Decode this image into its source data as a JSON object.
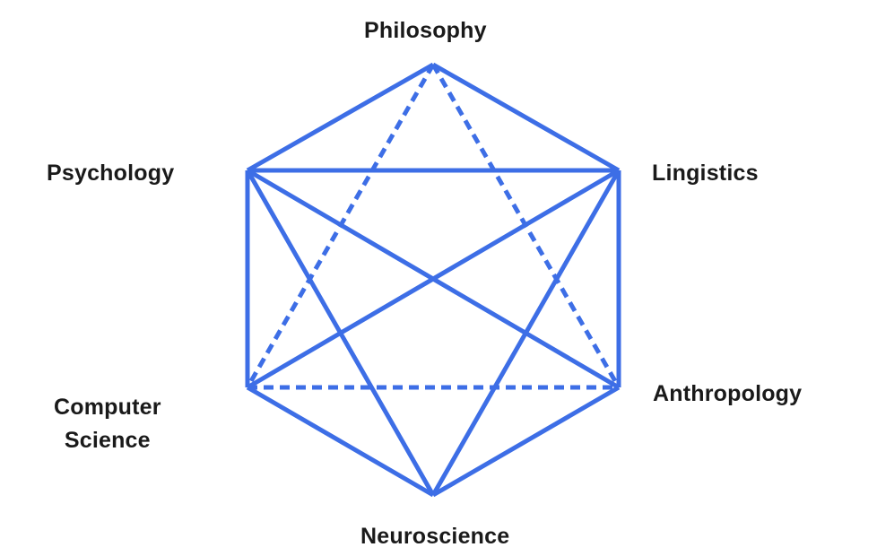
{
  "diagram": {
    "type": "hexagon-relations",
    "accent_color": "#3d6ee6",
    "label_color": "#1a1a1a",
    "nodes": [
      {
        "id": "philosophy",
        "label": "Philosophy"
      },
      {
        "id": "lingistics",
        "label": "Lingistics"
      },
      {
        "id": "anthropology",
        "label": "Anthropology"
      },
      {
        "id": "neuroscience",
        "label": "Neuroscience"
      },
      {
        "id": "computer-science",
        "label": "Computer Science",
        "label_lines": [
          "Computer",
          "Science"
        ]
      },
      {
        "id": "psychology",
        "label": "Psychology"
      }
    ],
    "edges": [
      {
        "from": "philosophy",
        "to": "lingistics",
        "style": "solid"
      },
      {
        "from": "philosophy",
        "to": "psychology",
        "style": "solid"
      },
      {
        "from": "lingistics",
        "to": "anthropology",
        "style": "solid"
      },
      {
        "from": "anthropology",
        "to": "neuroscience",
        "style": "solid"
      },
      {
        "from": "neuroscience",
        "to": "computer-science",
        "style": "solid"
      },
      {
        "from": "computer-science",
        "to": "psychology",
        "style": "solid"
      },
      {
        "from": "psychology",
        "to": "lingistics",
        "style": "solid"
      },
      {
        "from": "psychology",
        "to": "anthropology",
        "style": "solid"
      },
      {
        "from": "psychology",
        "to": "neuroscience",
        "style": "solid"
      },
      {
        "from": "lingistics",
        "to": "computer-science",
        "style": "solid"
      },
      {
        "from": "lingistics",
        "to": "neuroscience",
        "style": "solid"
      },
      {
        "from": "philosophy",
        "to": "computer-science",
        "style": "dashed"
      },
      {
        "from": "philosophy",
        "to": "anthropology",
        "style": "dashed"
      },
      {
        "from": "computer-science",
        "to": "anthropology",
        "style": "dashed"
      }
    ]
  }
}
